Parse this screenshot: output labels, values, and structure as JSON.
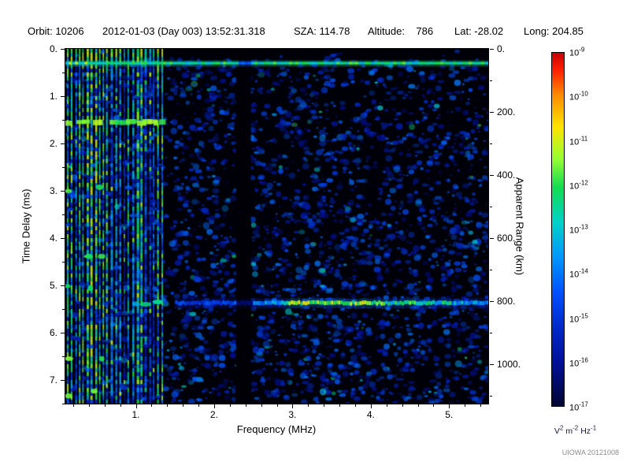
{
  "header": {
    "items": [
      "Orbit: 10206",
      "2012-01-03 (Day 003) 13:52:31.318",
      "SZA: 114.78",
      "Altitude:    786",
      "Lat: -28.02",
      "Long: 204.85"
    ]
  },
  "footer": {
    "credit": "UIOWA 20121008"
  },
  "colors": {
    "page_bg": "#ffffff",
    "plot_bg": "#000008",
    "axis": "#000000",
    "credit_text": "#8a8a8a"
  },
  "chart_data": {
    "type": "heatmap",
    "title": "",
    "xlabel": "Frequency (MHz)",
    "ylabel": "Time Delay (ms)",
    "y2label": "Apparent Range (km)",
    "x_range_mhz": [
      0.1,
      5.5
    ],
    "x_tick_values": [
      1,
      2,
      3,
      4,
      5
    ],
    "x_tick_labels": [
      "1.",
      "2.",
      "3.",
      "4.",
      "5."
    ],
    "x_minor_step": 0.2,
    "y_range_ms": [
      0,
      7.5
    ],
    "y_tick_values": [
      0,
      1,
      2,
      3,
      4,
      5,
      6,
      7
    ],
    "y_tick_labels": [
      "0.",
      "1.",
      "2.",
      "3.",
      "4.",
      "5.",
      "6.",
      "7."
    ],
    "y_minor_step": 0.5,
    "y2_tick_values_km": [
      0,
      200,
      400,
      600,
      800,
      1000
    ],
    "y2_tick_labels": [
      "0.",
      "200.",
      "400.",
      "600.",
      "800.",
      "1000."
    ],
    "y2_minor_step_km": 100,
    "km_per_ms": 150,
    "grid": false,
    "colorbar": {
      "scale": "log",
      "max": 1e-09,
      "min": 1e-17,
      "tick_exponents": [
        "-9",
        "-10",
        "-11",
        "-12",
        "-13",
        "-14",
        "-15",
        "-16",
        "-17"
      ],
      "unit_parts": [
        [
          "V",
          "2"
        ],
        [
          "m",
          "-2"
        ],
        [
          "Hz",
          "-1"
        ]
      ],
      "stops": [
        [
          0,
          "#c80000"
        ],
        [
          0.05,
          "#ff2000"
        ],
        [
          0.12,
          "#ff8c00"
        ],
        [
          0.21,
          "#ffe400"
        ],
        [
          0.3,
          "#96ff32"
        ],
        [
          0.38,
          "#14dc50"
        ],
        [
          0.48,
          "#00d2c8"
        ],
        [
          0.58,
          "#0096ff"
        ],
        [
          0.68,
          "#0050ff"
        ],
        [
          0.78,
          "#0028c8"
        ],
        [
          0.88,
          "#001096"
        ],
        [
          1,
          "#000532"
        ]
      ]
    },
    "features": {
      "background_color": "#000008",
      "speckle": {
        "count": 5200,
        "v_min": 0.07,
        "v_max": 0.38,
        "cyan_prob": 0.06,
        "green_prob": 0.015,
        "seed": 20121008
      },
      "ionosphere_stripes": {
        "f_start": 0.12,
        "f_end": 1.36,
        "spacing_mhz": 0.052,
        "bright_stripe_f": [
          0.14,
          0.3,
          0.55,
          1.3
        ],
        "v_base": 0.2,
        "v_max": 0.75
      },
      "top_echo_line": {
        "time_ms": 0.3,
        "v": 0.55
      },
      "interference_gap": {
        "f_start": 2.28,
        "f_end": 2.47
      },
      "left_bright_band": {
        "time_ms": 1.55,
        "f_start": 0.1,
        "f_end": 1.32,
        "v": 0.6
      },
      "left_bright_spots": {
        "times_ms": [
          2.95,
          4.35,
          5.05,
          6.6,
          7.3
        ],
        "f_max": 0.6,
        "v": 0.58
      },
      "surface_echo": {
        "time_ms": 5.37,
        "apparent_range_km": 800,
        "f_start": 1.5,
        "f_peak_start": 2.9,
        "f_peak_end": 4.6,
        "v_base": 0.3,
        "v_peak": 0.68
      }
    }
  }
}
